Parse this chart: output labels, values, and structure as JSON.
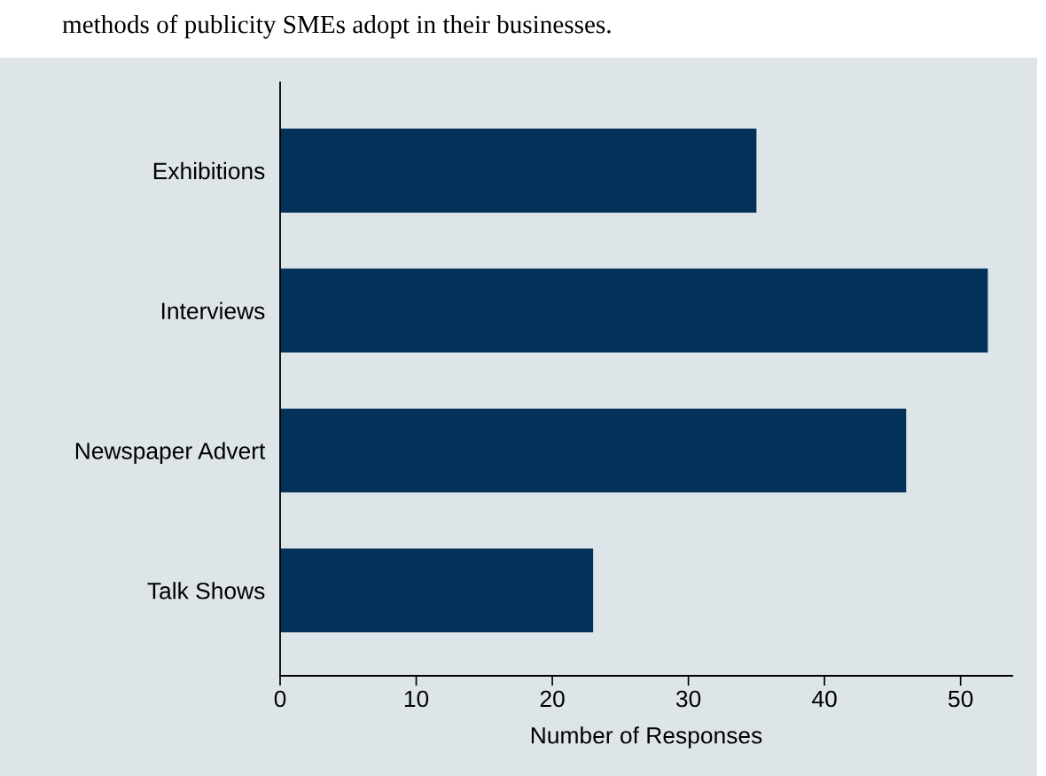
{
  "chart_data": {
    "type": "bar",
    "orientation": "horizontal",
    "title": "methods of publicity SMEs adopt in their businesses.",
    "categories": [
      "Exhibitions",
      "Interviews",
      "Newspaper Advert",
      "Talk Shows"
    ],
    "values": [
      35,
      52,
      46,
      23
    ],
    "color": "#03315a",
    "xlabel": "Number of Responses",
    "xlim": [
      0,
      53.8
    ],
    "xticks": [
      0,
      10,
      20,
      30,
      40,
      50
    ],
    "grid": false,
    "legend": false
  }
}
